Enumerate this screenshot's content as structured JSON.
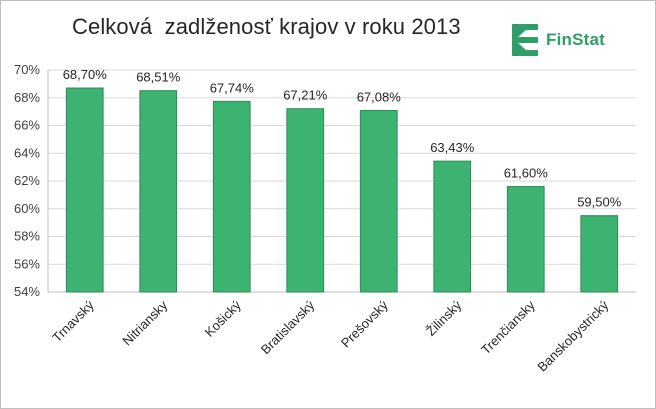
{
  "chart_data": {
    "type": "bar",
    "title": "Celková  zadlženosť krajov v roku 2013",
    "xlabel": "",
    "ylabel": "",
    "ylim": [
      54,
      70
    ],
    "yticks": [
      54,
      56,
      58,
      60,
      62,
      64,
      66,
      68,
      70
    ],
    "ytick_labels": [
      "54%",
      "56%",
      "58%",
      "60%",
      "62%",
      "64%",
      "66%",
      "68%",
      "70%"
    ],
    "categories": [
      "Trnavský",
      "Nitriansky",
      "Košický",
      "Bratislavský",
      "Prešovský",
      "Žilinský",
      "Trenčiansky",
      "Banskobystrický"
    ],
    "values": [
      68.7,
      68.51,
      67.74,
      67.21,
      67.08,
      63.43,
      61.6,
      59.5
    ],
    "data_labels": [
      "68,70%",
      "68,51%",
      "67,74%",
      "67,21%",
      "67,08%",
      "63,43%",
      "61,60%",
      "59,50%"
    ],
    "bar_color": "#3cb371",
    "bar_edge_color": "#2e8b57",
    "grid": true,
    "grid_color": "#d9d9d9",
    "legend": false
  },
  "brand": {
    "name": "FinStat",
    "color": "#2f9e6b",
    "icon": "finstat-logo-icon"
  }
}
